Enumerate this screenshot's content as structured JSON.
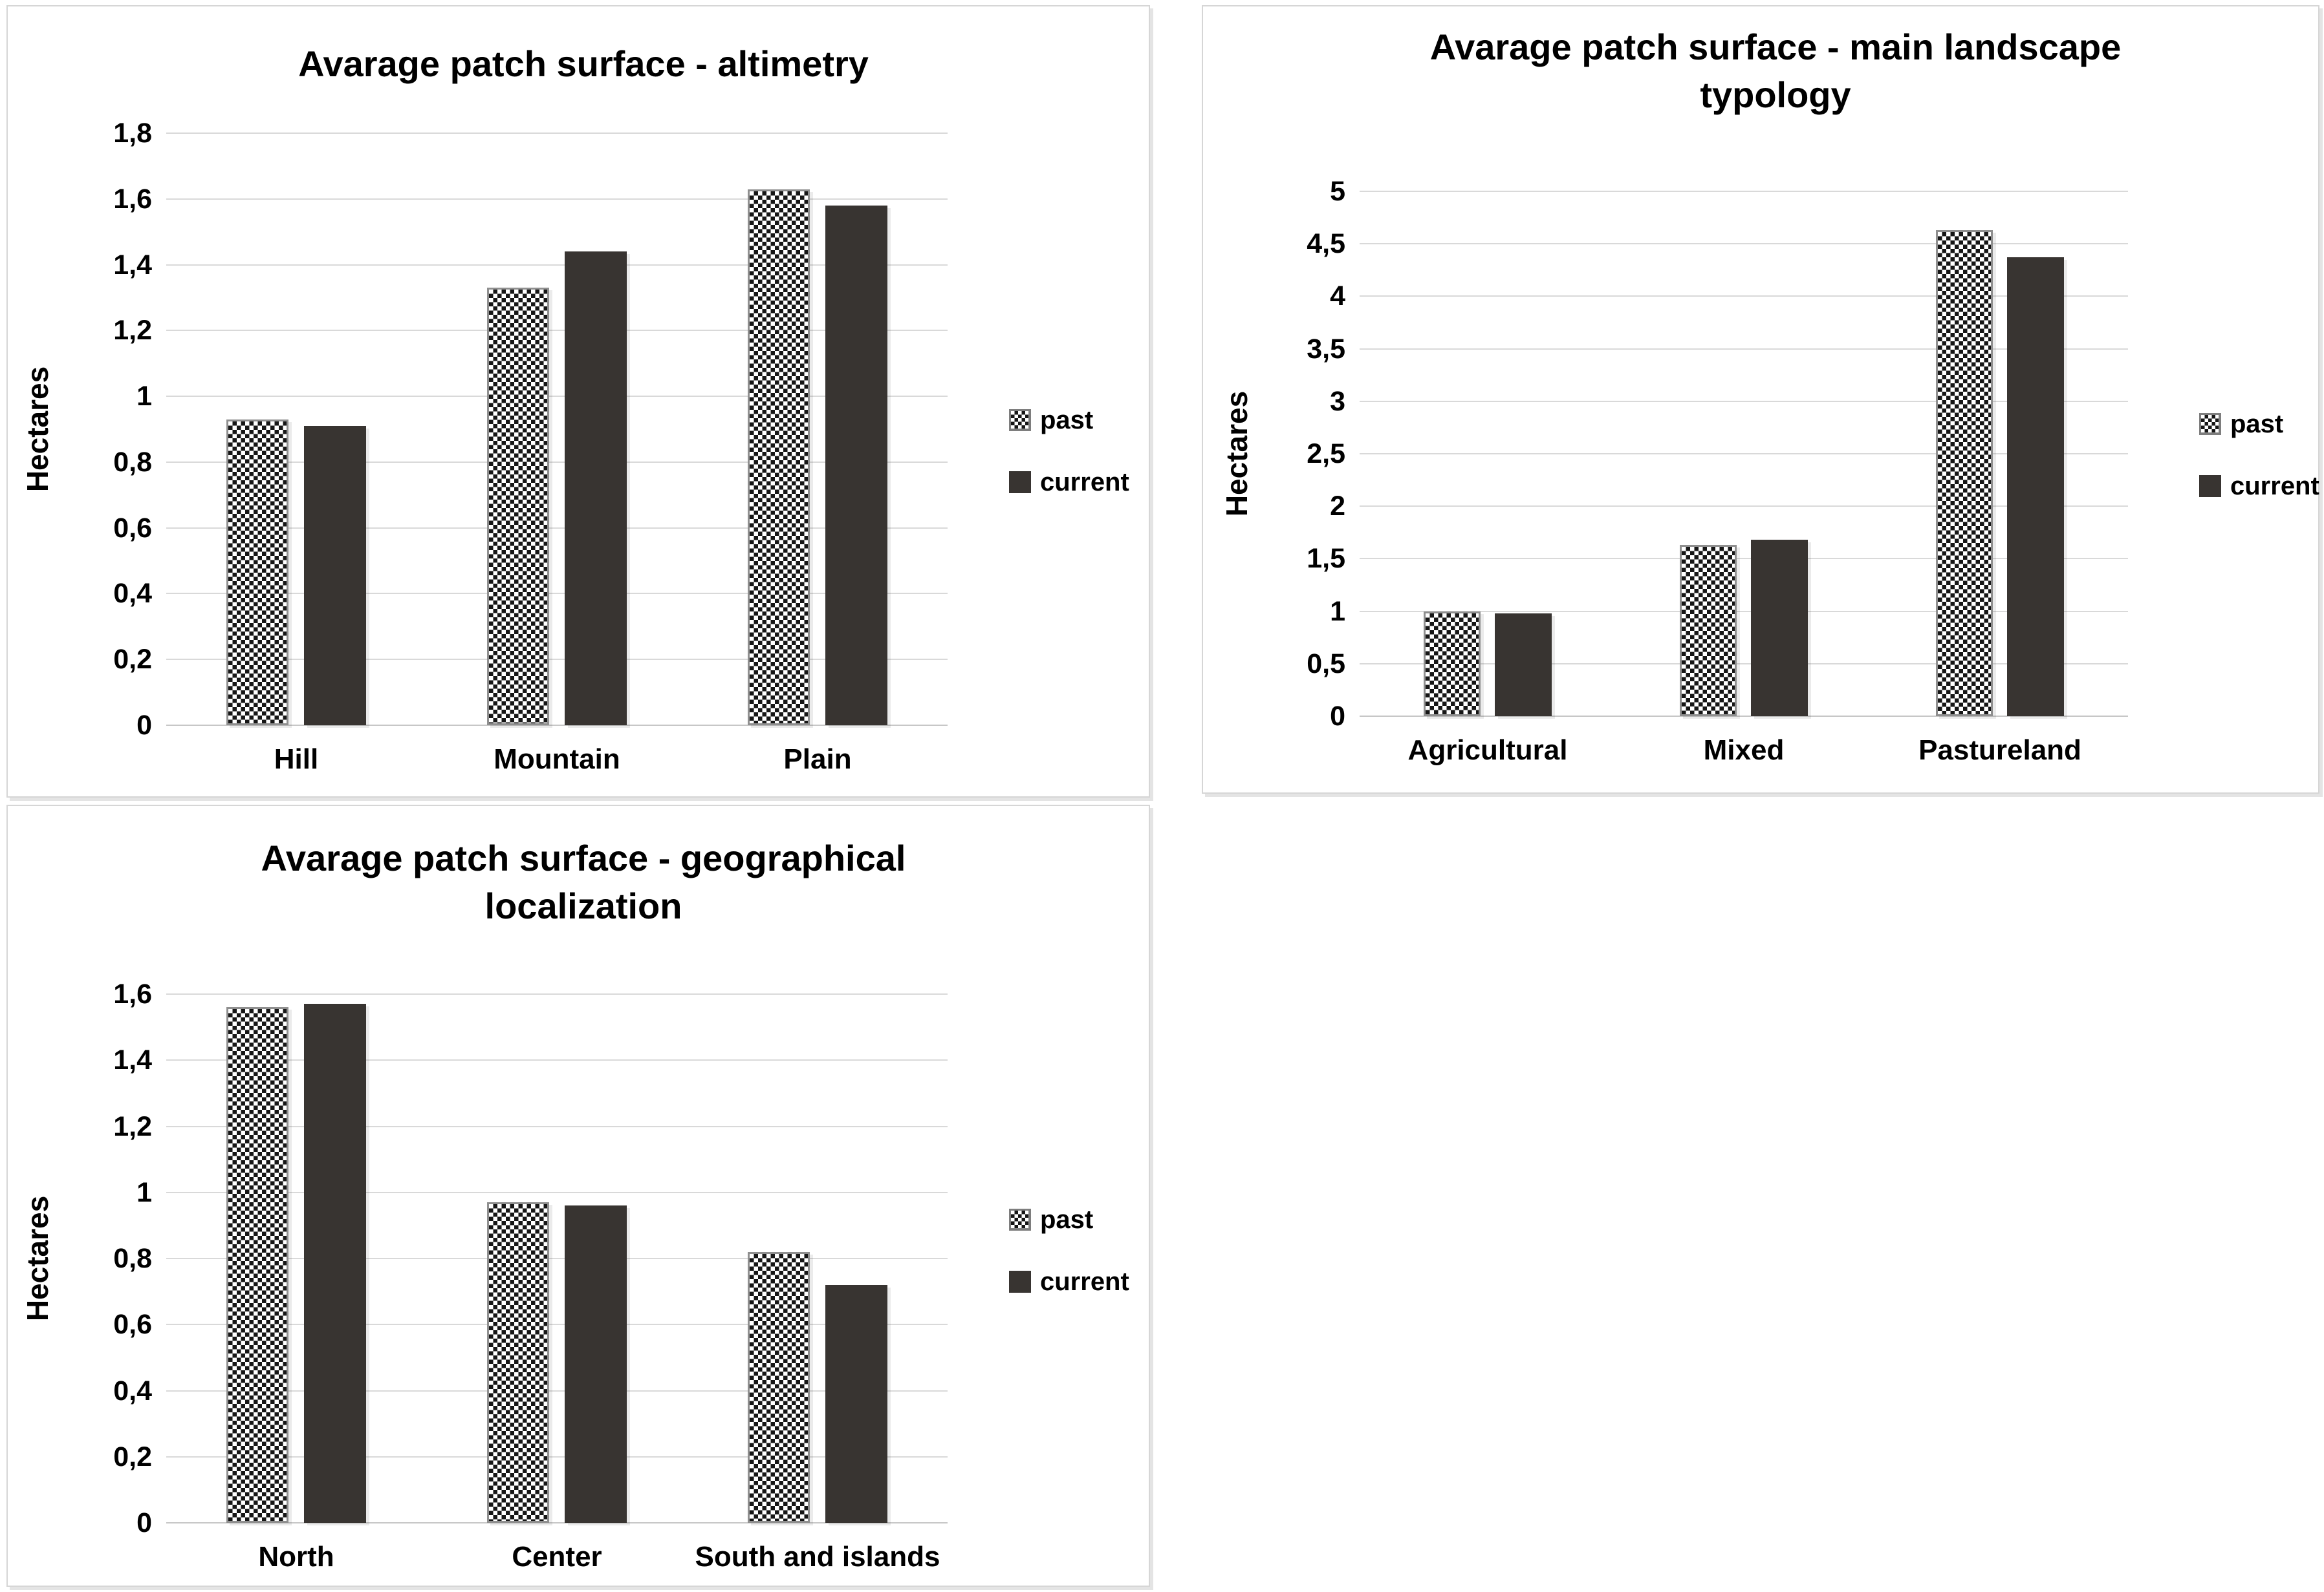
{
  "figure": {
    "background": "#ffffff",
    "panel_border_color": "#d6d6d6",
    "gridline_color": "#d9d9d9",
    "text_color": "#000000",
    "past_bar_style": "black-white checkered pattern with gray outline",
    "past_check_color": "#161616",
    "past_border_color": "#8f8f8f",
    "current_bar_color": "#383431",
    "unit": "Hectares"
  },
  "chart_data": [
    {
      "type": "bar",
      "title": "Avarage patch surface - altimetry",
      "title_lines": [
        "Avarage patch surface - altimetry"
      ],
      "ylabel": "Hectares",
      "xlabel": "",
      "ylim": [
        0,
        1.8
      ],
      "ytick_step": 0.2,
      "decimal_separator": ",",
      "ytick_labels": [
        "1,8",
        "1,6",
        "1,4",
        "1,2",
        "1",
        "0,8",
        "0,6",
        "0,4",
        "0,2",
        "0"
      ],
      "grid": true,
      "legend_position": "right",
      "legend_labels": [
        "past",
        "current"
      ],
      "categories": [
        "Hill",
        "Mountain",
        "Plain"
      ],
      "series": [
        {
          "name": "past",
          "style": "checkered",
          "values": [
            0.93,
            1.33,
            1.63
          ]
        },
        {
          "name": "current",
          "style": "solid",
          "values": [
            0.91,
            1.44,
            1.58
          ]
        }
      ]
    },
    {
      "type": "bar",
      "title": "Avarage patch surface - main landscape typology",
      "title_lines": [
        "Avarage patch surface - main landscape",
        "typology"
      ],
      "ylabel": "Hectares",
      "xlabel": "",
      "ylim": [
        0,
        5
      ],
      "ytick_step": 0.5,
      "decimal_separator": ",",
      "ytick_labels": [
        "5",
        "4,5",
        "4",
        "3,5",
        "3",
        "2,5",
        "2",
        "1,5",
        "1",
        "0,5",
        "0"
      ],
      "grid": true,
      "legend_position": "right",
      "legend_labels": [
        "past",
        "current"
      ],
      "categories": [
        "Agricultural",
        "Mixed",
        "Pastureland"
      ],
      "series": [
        {
          "name": "past",
          "style": "checkered",
          "values": [
            1.0,
            1.63,
            4.63
          ]
        },
        {
          "name": "current",
          "style": "solid",
          "values": [
            0.98,
            1.68,
            4.37
          ]
        }
      ]
    },
    {
      "type": "bar",
      "title": "Avarage patch surface - geographical localization",
      "title_lines": [
        "Avarage patch surface - geographical",
        "localization"
      ],
      "ylabel": "Hectares",
      "xlabel": "",
      "ylim": [
        0,
        1.6
      ],
      "ytick_step": 0.2,
      "decimal_separator": ",",
      "ytick_labels": [
        "1,6",
        "1,4",
        "1,2",
        "1",
        "0,8",
        "0,6",
        "0,4",
        "0,2",
        "0"
      ],
      "grid": true,
      "legend_position": "right",
      "legend_labels": [
        "past",
        "current"
      ],
      "categories": [
        "North",
        "Center",
        "South and islands"
      ],
      "series": [
        {
          "name": "past",
          "style": "checkered",
          "values": [
            1.56,
            0.97,
            0.82
          ]
        },
        {
          "name": "current",
          "style": "solid",
          "values": [
            1.57,
            0.96,
            0.72
          ]
        }
      ]
    }
  ]
}
